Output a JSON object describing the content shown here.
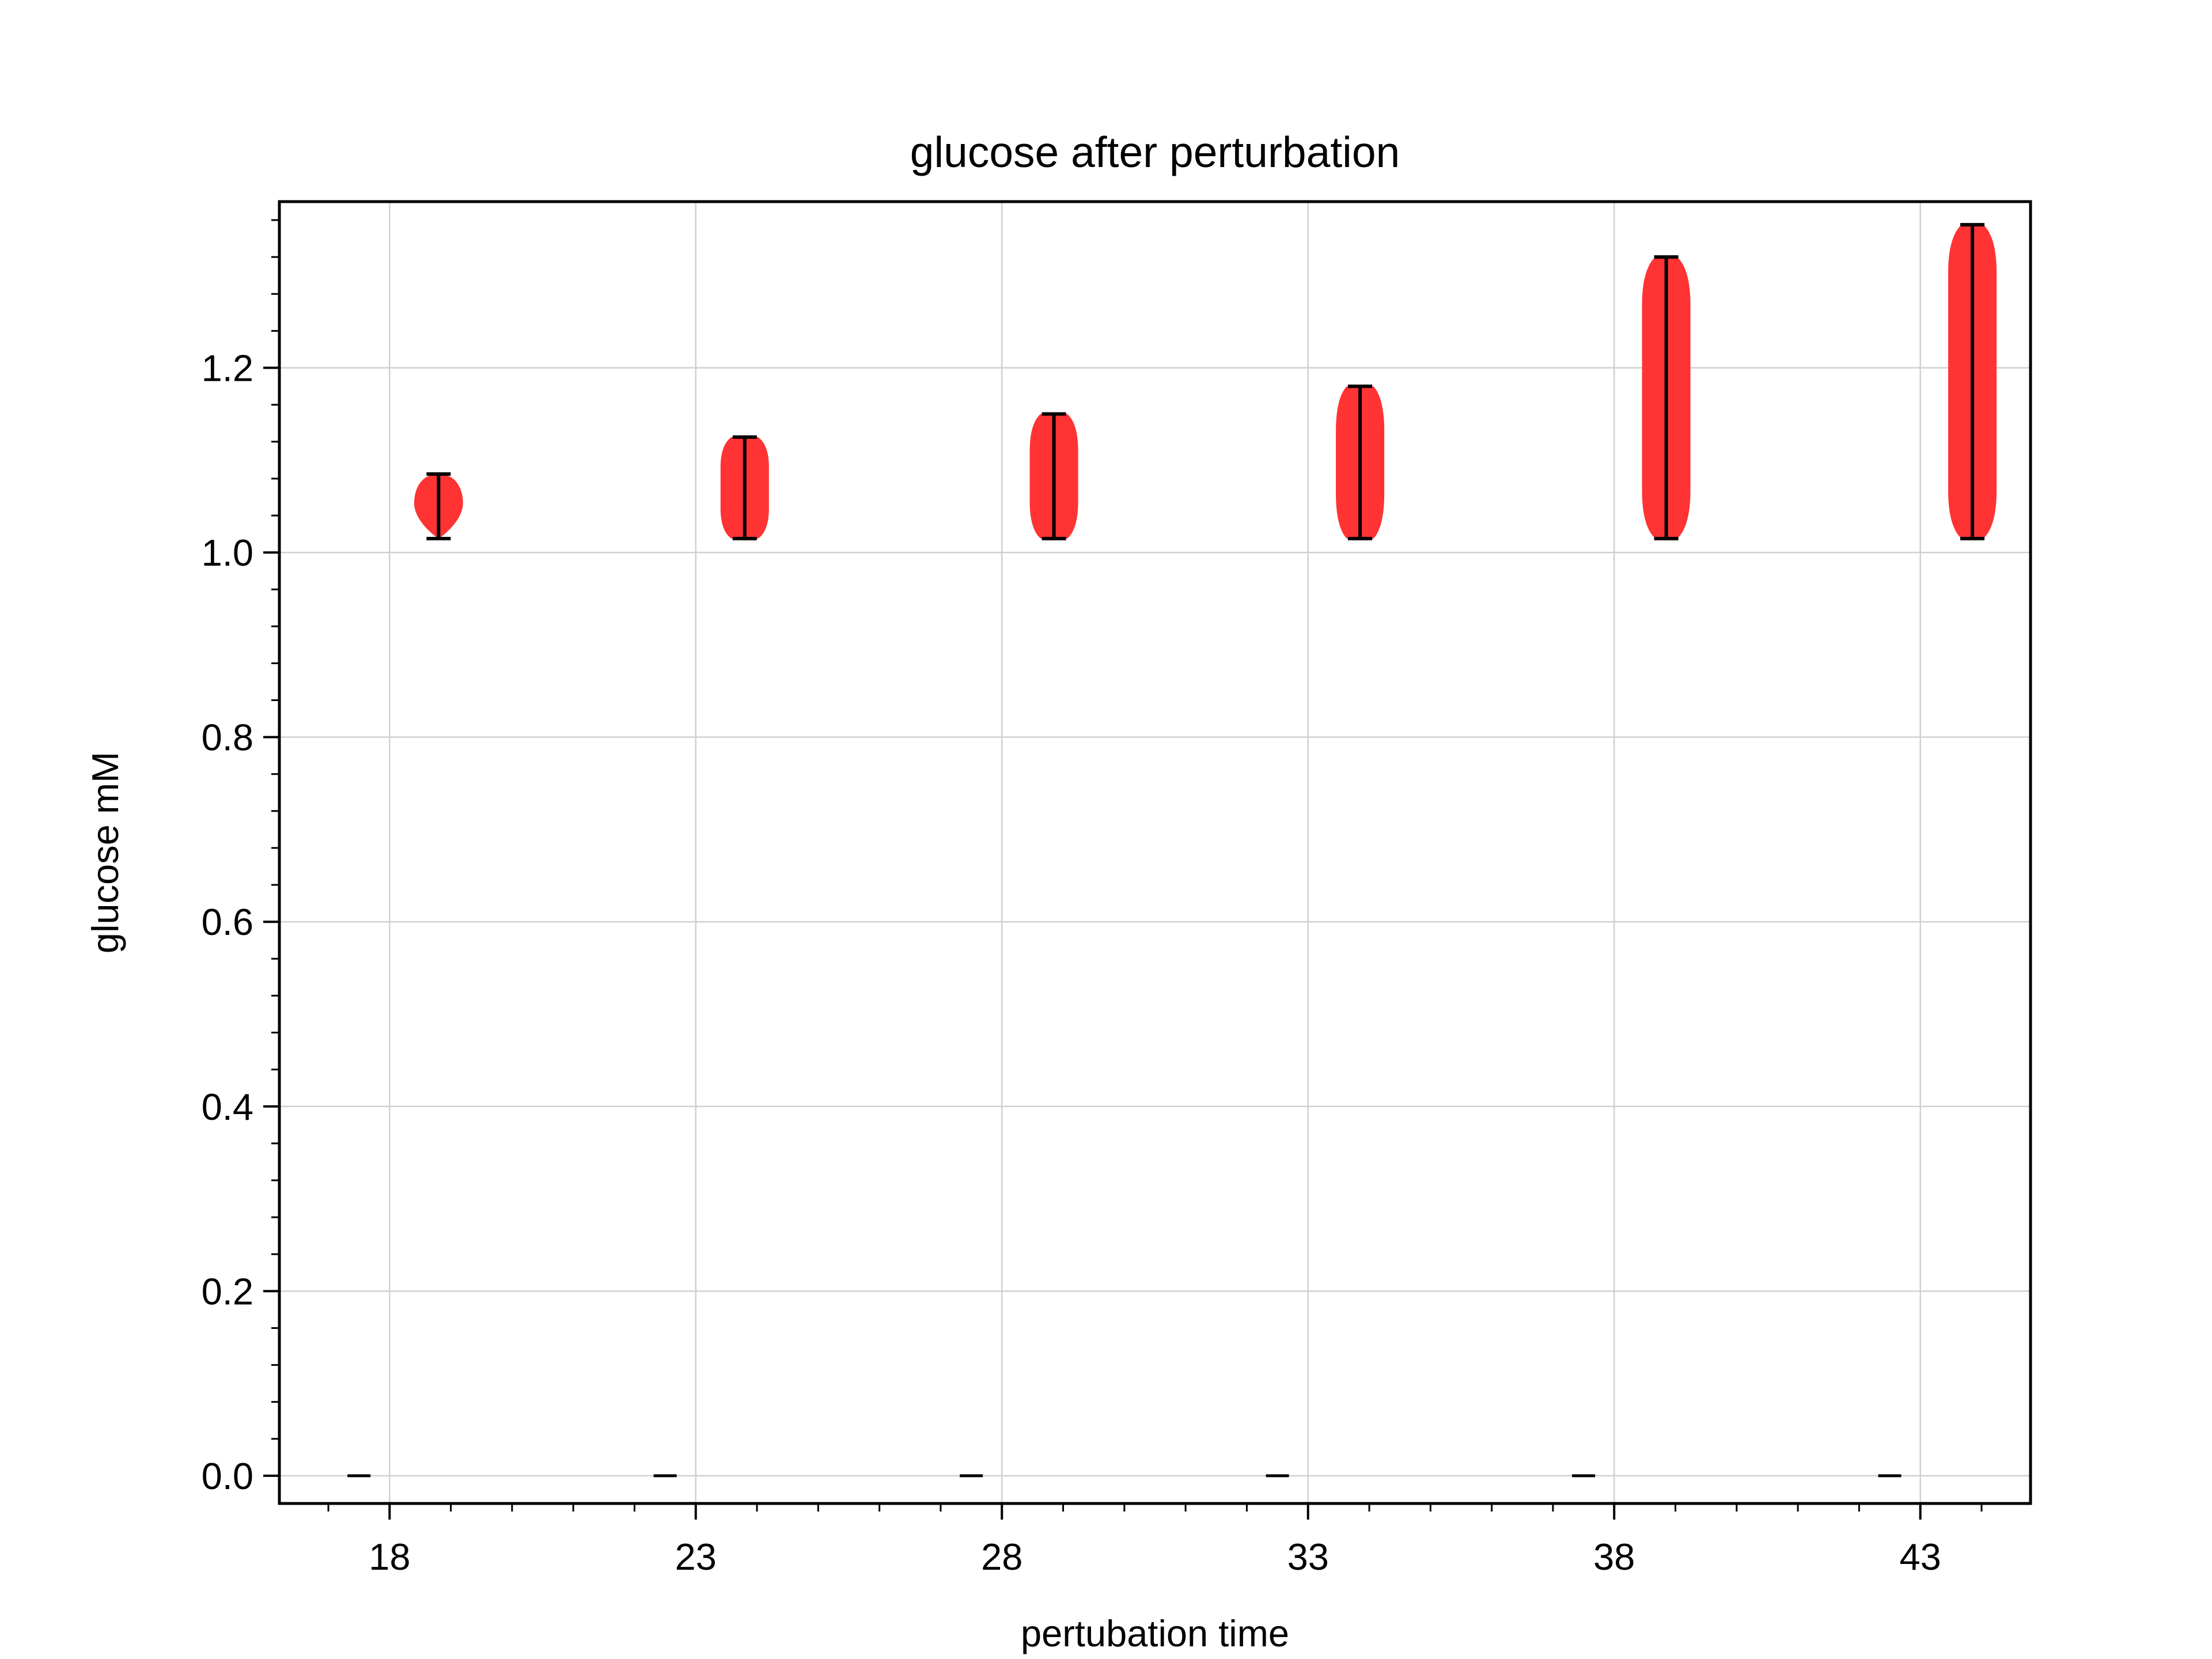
{
  "chart_data": {
    "type": "violin",
    "title": "glucose after perturbation",
    "xlabel": "pertubation time",
    "ylabel": "glucose mM",
    "x_tick_labels": [
      "18",
      "23",
      "28",
      "33",
      "38",
      "43"
    ],
    "x_ticks": [
      18,
      23,
      28,
      33,
      38,
      43
    ],
    "y_tick_labels": [
      "0.0",
      "0.2",
      "0.4",
      "0.6",
      "0.8",
      "1.0",
      "1.2"
    ],
    "y_ticks": [
      0.0,
      0.2,
      0.4,
      0.6,
      0.8,
      1.0,
      1.2
    ],
    "xlim": [
      16.2,
      44.8
    ],
    "ylim": [
      -0.03,
      1.38
    ],
    "grid": true,
    "colors": {
      "violin_fill": "#ff3333",
      "whisker": "#000000",
      "grid": "#d0d0d0",
      "axes": "#000000"
    },
    "groups": [
      {
        "time": 18,
        "baseline": {
          "x": 17.5,
          "value": 0.0
        },
        "violin": {
          "x": 18.8,
          "min": 1.015,
          "max": 1.085,
          "shape": "teardrop"
        }
      },
      {
        "time": 23,
        "baseline": {
          "x": 22.5,
          "value": 0.0
        },
        "violin": {
          "x": 23.8,
          "min": 1.015,
          "max": 1.125,
          "shape": "rounded"
        }
      },
      {
        "time": 28,
        "baseline": {
          "x": 27.5,
          "value": 0.0
        },
        "violin": {
          "x": 28.85,
          "min": 1.015,
          "max": 1.15,
          "shape": "rounded"
        }
      },
      {
        "time": 33,
        "baseline": {
          "x": 32.5,
          "value": 0.0
        },
        "violin": {
          "x": 33.85,
          "min": 1.015,
          "max": 1.18,
          "shape": "rounded"
        }
      },
      {
        "time": 38,
        "baseline": {
          "x": 37.5,
          "value": 0.0
        },
        "violin": {
          "x": 38.85,
          "min": 1.015,
          "max": 1.32,
          "shape": "bulge"
        }
      },
      {
        "time": 43,
        "baseline": {
          "x": 42.5,
          "value": 0.0
        },
        "violin": {
          "x": 43.85,
          "min": 1.015,
          "max": 1.355,
          "shape": "bulge"
        }
      }
    ]
  }
}
